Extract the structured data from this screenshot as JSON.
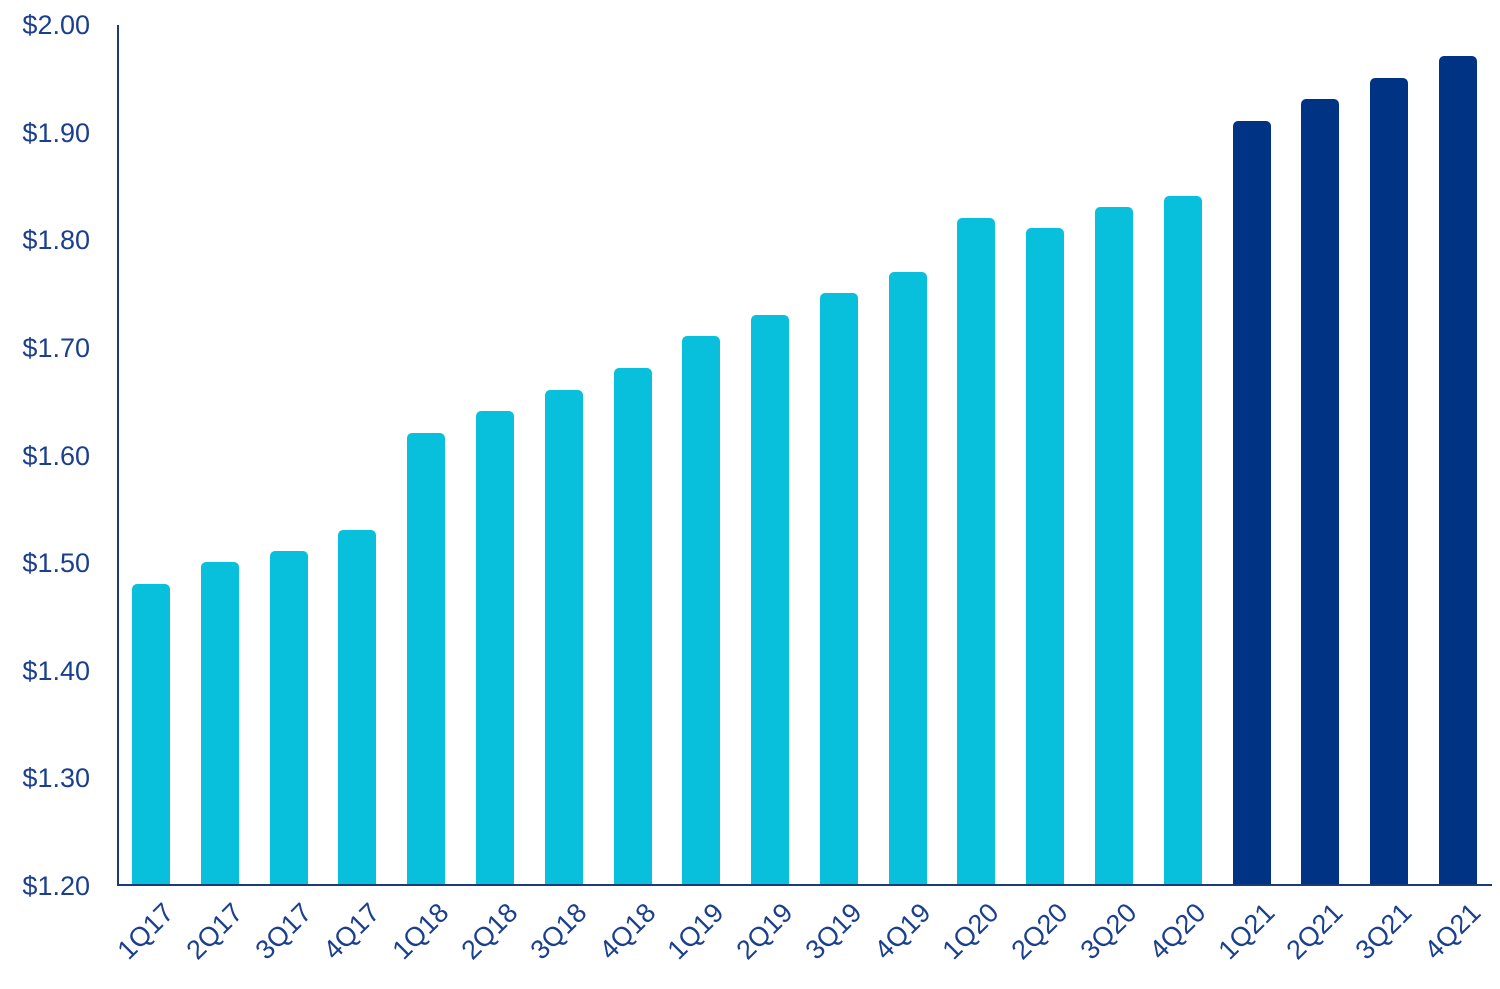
{
  "chart_data": {
    "type": "bar",
    "title": "",
    "xlabel": "",
    "ylabel": "",
    "categories": [
      "1Q17",
      "2Q17",
      "3Q17",
      "4Q17",
      "1Q18",
      "2Q18",
      "3Q18",
      "4Q18",
      "1Q19",
      "2Q19",
      "3Q19",
      "4Q19",
      "1Q20",
      "2Q20",
      "3Q20",
      "4Q20",
      "1Q21",
      "2Q21",
      "3Q21",
      "4Q21"
    ],
    "values": [
      1.48,
      1.5,
      1.51,
      1.53,
      1.62,
      1.64,
      1.66,
      1.68,
      1.71,
      1.73,
      1.75,
      1.77,
      1.82,
      1.81,
      1.83,
      1.84,
      1.91,
      1.93,
      1.95,
      1.97
    ],
    "bar_colors": [
      "#08c0dc",
      "#08c0dc",
      "#08c0dc",
      "#08c0dc",
      "#08c0dc",
      "#08c0dc",
      "#08c0dc",
      "#08c0dc",
      "#08c0dc",
      "#08c0dc",
      "#08c0dc",
      "#08c0dc",
      "#08c0dc",
      "#08c0dc",
      "#08c0dc",
      "#08c0dc",
      "#003384",
      "#003384",
      "#003384",
      "#003384"
    ],
    "ylim": [
      1.2,
      2.0
    ],
    "ytick_labels": [
      "$2.00",
      "$1.90",
      "$1.80",
      "$1.70",
      "$1.60",
      "$1.50",
      "$1.40",
      "$1.30",
      "$1.20"
    ],
    "ytick_values": [
      2.0,
      1.9,
      1.8,
      1.7,
      1.6,
      1.5,
      1.4,
      1.3,
      1.2
    ],
    "value_prefix": "$",
    "grid": false,
    "legend": "none"
  },
  "colors": {
    "bar_cyan": "#08c0dc",
    "bar_navy": "#003384",
    "axis_label": "#1b3f8f",
    "axis_line": "#1d3a78"
  }
}
